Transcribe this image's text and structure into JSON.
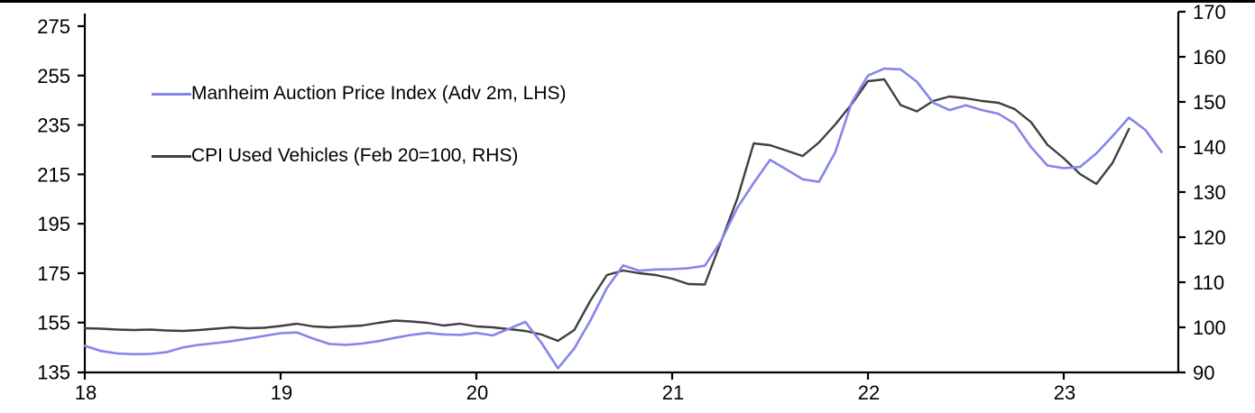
{
  "page": {
    "background": "#ffffff"
  },
  "chart_data": {
    "type": "line",
    "title": "",
    "grid": false,
    "legend_position": "inside-top-left",
    "x_axis": {
      "tick_labels": [
        "18",
        "19",
        "20",
        "21",
        "22",
        "23"
      ],
      "tick_values": [
        18,
        19,
        20,
        21,
        22,
        23
      ],
      "range": [
        18,
        23.59
      ],
      "unit": "year (2018-2023)"
    },
    "y_axis_left": {
      "range": [
        135,
        275
      ],
      "ticks": [
        275,
        255,
        235,
        215,
        195,
        175,
        155,
        135
      ]
    },
    "y_axis_right": {
      "range": [
        90,
        170
      ],
      "ticks": [
        170,
        160,
        150,
        140,
        130,
        120,
        110,
        100,
        90
      ]
    },
    "series": [
      {
        "name": "Manheim Auction Price Index (Adv 2m, LHS)",
        "axis": "left",
        "color": "#8585ea",
        "x_start": 18.0,
        "x_step": 0.0833333,
        "values": [
          145.6,
          143.5,
          142.5,
          142.2,
          142.3,
          143.0,
          144.9,
          146.0,
          146.7,
          147.5,
          148.5,
          149.6,
          150.7,
          151.0,
          148.5,
          146.3,
          146.0,
          146.5,
          147.5,
          148.8,
          150.0,
          150.8,
          150.2,
          150.0,
          150.8,
          149.8,
          152.5,
          155.3,
          146.7,
          136.5,
          144.5,
          156.0,
          169.0,
          178.1,
          176.0,
          176.5,
          176.6,
          177.0,
          178.0,
          188.0,
          201.5,
          211.5,
          220.9,
          217.0,
          213.0,
          212.0,
          224.0,
          244.0,
          255.0,
          257.8,
          257.5,
          252.5,
          244.0,
          241.0,
          243.0,
          241.0,
          239.5,
          235.5,
          226.0,
          218.6,
          217.5,
          218.0,
          223.5,
          230.5,
          238.0,
          233.0,
          224.0
        ]
      },
      {
        "name": "CPI Used Vehicles (Feb 20=100, RHS)",
        "axis": "right",
        "color": "#3f3f3f",
        "x_start": 18.0,
        "x_step": 0.0833333,
        "values": [
          99.8,
          99.7,
          99.5,
          99.4,
          99.5,
          99.3,
          99.2,
          99.4,
          99.7,
          100.0,
          99.8,
          99.9,
          100.3,
          100.8,
          100.2,
          100.0,
          100.2,
          100.4,
          101.0,
          101.5,
          101.3,
          101.0,
          100.4,
          100.8,
          100.2,
          100.0,
          99.6,
          99.2,
          98.4,
          97.0,
          99.4,
          106.0,
          111.6,
          112.6,
          112.0,
          111.6,
          110.8,
          109.6,
          109.5,
          119.0,
          128.6,
          140.8,
          140.4,
          139.2,
          138.0,
          141.0,
          145.0,
          149.5,
          154.6,
          155.0,
          149.3,
          147.9,
          150.2,
          151.2,
          150.8,
          150.2,
          149.8,
          148.4,
          145.5,
          140.5,
          137.5,
          134.0,
          131.8,
          136.5,
          144.0
        ]
      }
    ]
  }
}
